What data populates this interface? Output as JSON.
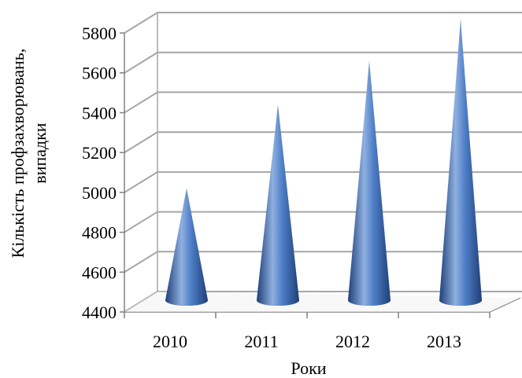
{
  "chart_data": {
    "type": "bar",
    "bar_shape": "cone",
    "projection": "3d",
    "categories": [
      "2010",
      "2011",
      "2012",
      "2013"
    ],
    "values": [
      4970,
      5390,
      5610,
      5820
    ],
    "ylim": [
      4400,
      5800
    ],
    "yticks": [
      4400,
      4600,
      4800,
      5000,
      5200,
      5400,
      5600,
      5800
    ],
    "ylabel_line1": "Кількість профзахворювань,",
    "ylabel_line2": "випадки",
    "xlabel": "Роки",
    "grid": true,
    "legend": "none",
    "colors": {
      "cone_light": "#8fb0e0",
      "cone_mid": "#4f7fc8",
      "cone_dark": "#1f3f78",
      "gridline": "#a6a6a6",
      "axis": "#808080"
    }
  }
}
